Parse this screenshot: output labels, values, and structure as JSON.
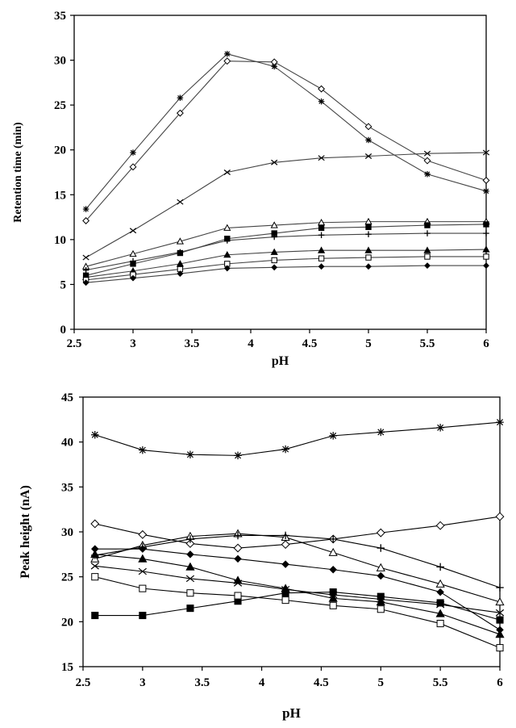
{
  "chart_data": [
    {
      "type": "line",
      "title": "",
      "xlabel": "pH",
      "ylabel": "Retention time (min)",
      "xlim": [
        2.5,
        6
      ],
      "ylim": [
        0,
        35
      ],
      "xticks": [
        2.5,
        3,
        3.5,
        4,
        4.5,
        5,
        5.5,
        6
      ],
      "yticks": [
        0,
        5,
        10,
        15,
        20,
        25,
        30,
        35
      ],
      "xtick_labels": [
        "2.5",
        "3",
        "3.5",
        "4",
        "4.5",
        "5",
        "5.5",
        "6"
      ],
      "ytick_labels": [
        "0",
        "5",
        "10",
        "15",
        "20",
        "25",
        "30",
        "35"
      ],
      "grid": false,
      "series": [
        {
          "name": "star",
          "marker": "star",
          "x": [
            2.6,
            3.0,
            3.4,
            3.8,
            4.2,
            4.6,
            5.0,
            5.5,
            6.0
          ],
          "y": [
            13.4,
            19.7,
            25.8,
            30.7,
            29.3,
            25.4,
            21.1,
            17.3,
            15.4
          ]
        },
        {
          "name": "open diamond",
          "marker": "open-diamond",
          "x": [
            2.6,
            3.0,
            3.4,
            3.8,
            4.2,
            4.6,
            5.0,
            5.5,
            6.0
          ],
          "y": [
            12.1,
            18.1,
            24.1,
            29.9,
            29.8,
            26.8,
            22.6,
            18.8,
            16.6
          ]
        },
        {
          "name": "cross x",
          "marker": "x",
          "x": [
            2.6,
            3.0,
            3.4,
            3.8,
            4.2,
            4.6,
            5.0,
            5.5,
            6.0
          ],
          "y": [
            8.0,
            11.0,
            14.2,
            17.5,
            18.6,
            19.1,
            19.3,
            19.6,
            19.7
          ]
        },
        {
          "name": "open triangle",
          "marker": "open-triangle",
          "x": [
            2.6,
            3.0,
            3.4,
            3.8,
            4.2,
            4.6,
            5.0,
            5.5,
            6.0
          ],
          "y": [
            7.0,
            8.4,
            9.8,
            11.3,
            11.6,
            11.9,
            12.0,
            12.0,
            12.0
          ]
        },
        {
          "name": "filled square",
          "marker": "filled-square",
          "x": [
            2.6,
            3.0,
            3.4,
            3.8,
            4.2,
            4.6,
            5.0,
            5.5,
            6.0
          ],
          "y": [
            6.0,
            7.3,
            8.5,
            10.1,
            10.7,
            11.3,
            11.4,
            11.6,
            11.7
          ]
        },
        {
          "name": "plus",
          "marker": "plus",
          "x": [
            2.6,
            3.0,
            3.4,
            3.8,
            4.2,
            4.6,
            5.0,
            5.5,
            6.0
          ],
          "y": [
            6.6,
            7.6,
            8.6,
            9.9,
            10.3,
            10.5,
            10.6,
            10.7,
            10.7
          ]
        },
        {
          "name": "filled triangle",
          "marker": "filled-triangle",
          "x": [
            2.6,
            3.0,
            3.4,
            3.8,
            4.2,
            4.6,
            5.0,
            5.5,
            6.0
          ],
          "y": [
            5.8,
            6.5,
            7.3,
            8.3,
            8.6,
            8.8,
            8.8,
            8.8,
            8.9
          ]
        },
        {
          "name": "open square",
          "marker": "open-square",
          "x": [
            2.6,
            3.0,
            3.4,
            3.8,
            4.2,
            4.6,
            5.0,
            5.5,
            6.0
          ],
          "y": [
            5.5,
            6.1,
            6.7,
            7.3,
            7.7,
            7.9,
            8.0,
            8.1,
            8.1
          ]
        },
        {
          "name": "filled diamond",
          "marker": "filled-diamond",
          "x": [
            2.6,
            3.0,
            3.4,
            3.8,
            4.2,
            4.6,
            5.0,
            5.5,
            6.0
          ],
          "y": [
            5.2,
            5.7,
            6.2,
            6.8,
            6.9,
            7.0,
            7.0,
            7.1,
            7.1
          ]
        }
      ]
    },
    {
      "type": "line",
      "title": "",
      "xlabel": "pH",
      "ylabel": "Peak height (nA)",
      "xlim": [
        2.5,
        6
      ],
      "ylim": [
        15,
        45
      ],
      "xticks": [
        2.5,
        3,
        3.5,
        4,
        4.5,
        5,
        5.5,
        6
      ],
      "yticks": [
        15,
        20,
        25,
        30,
        35,
        40,
        45
      ],
      "xtick_labels": [
        "2.5",
        "3",
        "3.5",
        "4",
        "4.5",
        "5",
        "5.5",
        "6"
      ],
      "ytick_labels": [
        "15",
        "20",
        "25",
        "30",
        "35",
        "40",
        "45"
      ],
      "grid": false,
      "series": [
        {
          "name": "star",
          "marker": "star",
          "x": [
            2.6,
            3.0,
            3.4,
            3.8,
            4.2,
            4.6,
            5.0,
            5.5,
            6.0
          ],
          "y": [
            40.8,
            39.1,
            38.6,
            38.5,
            39.2,
            40.7,
            41.1,
            41.6,
            42.2
          ]
        },
        {
          "name": "open diamond",
          "marker": "open-diamond",
          "x": [
            2.6,
            3.0,
            3.4,
            3.8,
            4.2,
            4.6,
            5.0,
            5.5,
            6.0
          ],
          "y": [
            30.9,
            29.7,
            28.7,
            28.2,
            28.6,
            29.2,
            29.9,
            30.7,
            31.7
          ]
        },
        {
          "name": "cross x",
          "marker": "x",
          "x": [
            2.6,
            3.0,
            3.4,
            3.8,
            4.2,
            4.6,
            5.0,
            5.5,
            6.0
          ],
          "y": [
            26.2,
            25.6,
            24.8,
            24.3,
            23.6,
            23.0,
            22.5,
            21.9,
            21.0
          ]
        },
        {
          "name": "open triangle",
          "marker": "open-triangle",
          "x": [
            2.6,
            3.0,
            3.4,
            3.8,
            4.2,
            4.6,
            5.0,
            5.5,
            6.0
          ],
          "y": [
            27.0,
            28.5,
            29.5,
            29.8,
            29.4,
            27.7,
            26.0,
            24.2,
            22.2
          ]
        },
        {
          "name": "filled square",
          "marker": "filled-square",
          "x": [
            2.6,
            3.0,
            3.4,
            3.8,
            4.2,
            4.6,
            5.0,
            5.5,
            6.0
          ],
          "y": [
            20.7,
            20.7,
            21.5,
            22.3,
            23.2,
            23.3,
            22.8,
            22.1,
            20.2
          ]
        },
        {
          "name": "plus",
          "marker": "plus",
          "x": [
            2.6,
            3.0,
            3.4,
            3.8,
            4.2,
            4.6,
            5.0,
            5.5,
            6.0
          ],
          "y": [
            27.4,
            28.3,
            29.2,
            29.6,
            29.6,
            29.2,
            28.2,
            26.1,
            23.8
          ]
        },
        {
          "name": "filled triangle",
          "marker": "filled-triangle",
          "x": [
            2.6,
            3.0,
            3.4,
            3.8,
            4.2,
            4.6,
            5.0,
            5.5,
            6.0
          ],
          "y": [
            27.5,
            27.0,
            26.1,
            24.6,
            23.7,
            22.6,
            22.2,
            20.9,
            18.6
          ]
        },
        {
          "name": "open square",
          "marker": "open-square",
          "x": [
            2.6,
            3.0,
            3.4,
            3.8,
            4.2,
            4.6,
            5.0,
            5.5,
            6.0
          ],
          "y": [
            25.0,
            23.7,
            23.2,
            22.9,
            22.4,
            21.8,
            21.4,
            19.8,
            17.1
          ]
        },
        {
          "name": "filled diamond",
          "marker": "filled-diamond",
          "x": [
            2.6,
            3.0,
            3.4,
            3.8,
            4.2,
            4.6,
            5.0,
            5.5,
            6.0
          ],
          "y": [
            28.1,
            28.1,
            27.5,
            27.0,
            26.4,
            25.8,
            25.1,
            23.3,
            19.1
          ]
        }
      ]
    }
  ]
}
